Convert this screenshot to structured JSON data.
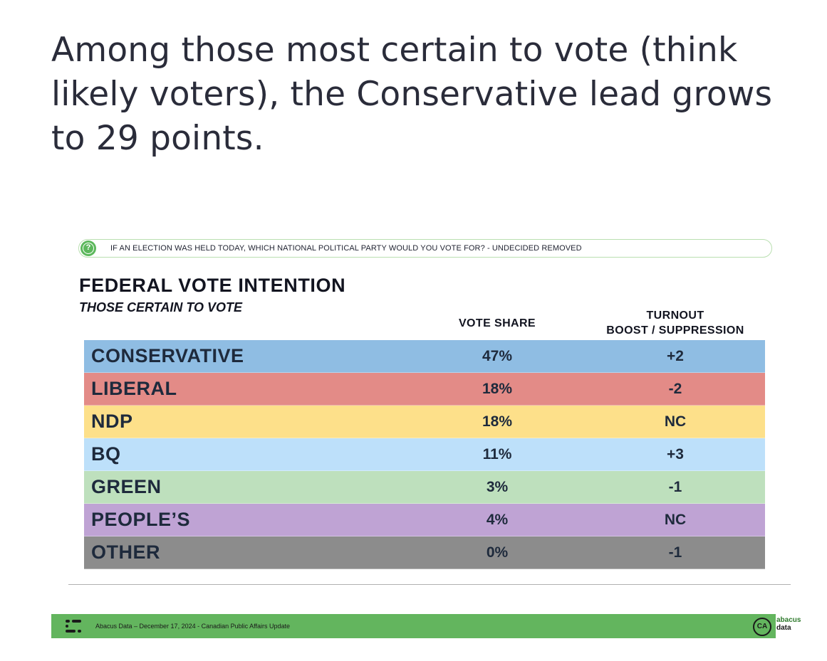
{
  "headline": "Among those most certain to vote (think likely voters), the Conservative lead grows to 29 points.",
  "question": "IF AN ELECTION WAS HELD TODAY, WHICH NATIONAL POLITICAL PARTY WOULD YOU VOTE FOR? - UNDECIDED REMOVED",
  "question_icon": "?",
  "chart_data": {
    "type": "table",
    "title": "FEDERAL VOTE INTENTION",
    "subtitle": "THOSE CERTAIN TO VOTE",
    "columns": {
      "vote_share": "VOTE SHARE",
      "turnout_line1": "TURNOUT",
      "turnout_line2": "BOOST / SUPPRESSION"
    },
    "rows": [
      {
        "party": "CONSERVATIVE",
        "vote_share": "47%",
        "turnout": "+2",
        "color": "#8fbde3"
      },
      {
        "party": "LIBERAL",
        "vote_share": "18%",
        "turnout": "-2",
        "color": "#e38b87"
      },
      {
        "party": "NDP",
        "vote_share": "18%",
        "turnout": "NC",
        "color": "#fde08a"
      },
      {
        "party": "BQ",
        "vote_share": "11%",
        "turnout": "+3",
        "color": "#bde0fa"
      },
      {
        "party": "GREEN",
        "vote_share": "3%",
        "turnout": "-1",
        "color": "#bee0bd"
      },
      {
        "party": "PEOPLE’S",
        "vote_share": "4%",
        "turnout": "NC",
        "color": "#bfa3d4"
      },
      {
        "party": "OTHER",
        "vote_share": "0%",
        "turnout": "-1",
        "color": "#8c8c8c"
      }
    ]
  },
  "footer": {
    "text": "Abacus Data – December 17, 2024 - Canadian Public Affairs Update",
    "ca_badge": "CA",
    "brand_line1": "abacus",
    "brand_line2": "data",
    "bar_color": "#63b55e"
  }
}
